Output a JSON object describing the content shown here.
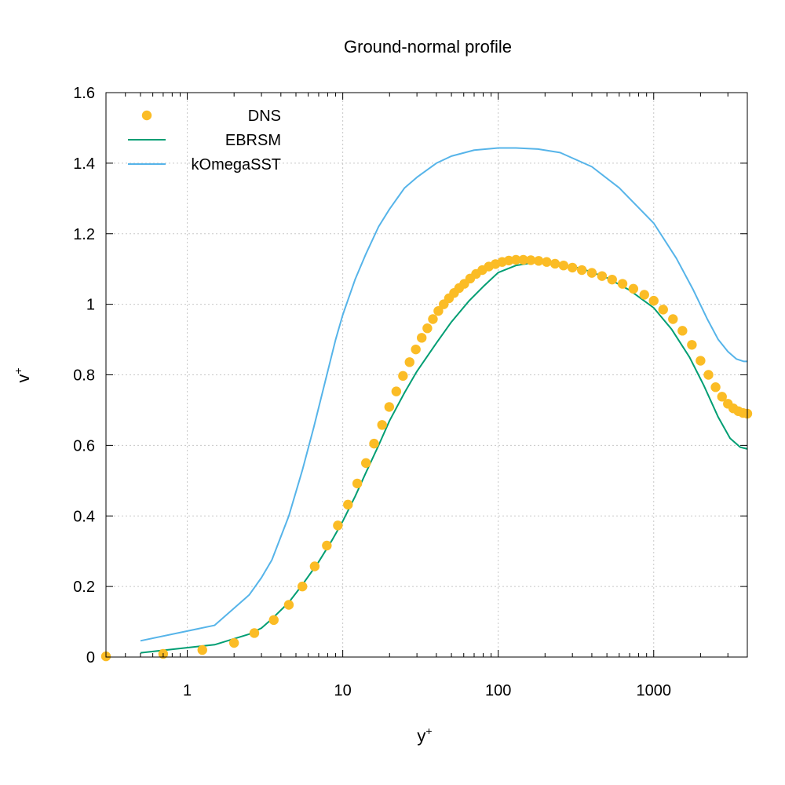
{
  "chart_data": {
    "type": "scatter",
    "title": "Ground-normal profile",
    "xlabel": "y",
    "xlabel_sup": "+",
    "ylabel": "v",
    "ylabel_sup": "+",
    "xscale": "log",
    "xlim": [
      0.3,
      4000
    ],
    "ylim": [
      0,
      1.6
    ],
    "xticks": [
      1,
      10,
      100,
      1000
    ],
    "xtick_labels": [
      "1",
      "10",
      "100",
      "1000"
    ],
    "yticks": [
      0,
      0.2,
      0.4,
      0.6,
      0.8,
      1,
      1.2,
      1.4,
      1.6
    ],
    "ytick_labels": [
      "0",
      "0.2",
      "0.4",
      "0.6",
      "0.8",
      "1",
      "1.2",
      "1.4",
      "1.6"
    ],
    "grid": true,
    "legend_position": "top-left",
    "series": [
      {
        "name": "DNS",
        "style": "points",
        "color": "#fbbc25",
        "x": [
          0.3,
          0.7,
          1.25,
          2.0,
          2.7,
          3.6,
          4.5,
          5.5,
          6.6,
          7.9,
          9.3,
          10.8,
          12.4,
          14.1,
          15.9,
          17.9,
          19.9,
          22.1,
          24.4,
          26.9,
          29.5,
          32.2,
          35.0,
          38.0,
          41.2,
          44.6,
          48.2,
          52.0,
          56.0,
          60.5,
          66,
          72,
          79,
          87,
          96,
          106,
          117,
          130,
          145,
          162,
          182,
          205,
          232,
          263,
          300,
          345,
          400,
          465,
          540,
          630,
          740,
          870,
          1000,
          1150,
          1330,
          1530,
          1760,
          2000,
          2250,
          2500,
          2750,
          3000,
          3250,
          3500,
          3750,
          4000
        ],
        "y": [
          0.002,
          0.009,
          0.02,
          0.04,
          0.068,
          0.105,
          0.148,
          0.2,
          0.257,
          0.316,
          0.373,
          0.432,
          0.492,
          0.55,
          0.605,
          0.658,
          0.709,
          0.753,
          0.797,
          0.836,
          0.872,
          0.905,
          0.932,
          0.958,
          0.981,
          1.0,
          1.017,
          1.032,
          1.046,
          1.058,
          1.073,
          1.086,
          1.097,
          1.107,
          1.114,
          1.12,
          1.124,
          1.126,
          1.126,
          1.125,
          1.123,
          1.12,
          1.115,
          1.11,
          1.104,
          1.097,
          1.089,
          1.08,
          1.07,
          1.058,
          1.044,
          1.027,
          1.01,
          0.985,
          0.958,
          0.925,
          0.885,
          0.84,
          0.8,
          0.765,
          0.738,
          0.718,
          0.705,
          0.697,
          0.692,
          0.69
        ]
      },
      {
        "name": "EBRSM",
        "style": "line",
        "color": "#009e73",
        "x": [
          0.5,
          1.5,
          2.5,
          3.0,
          3.5,
          4.5,
          5.5,
          7,
          8.5,
          10,
          12,
          14,
          17,
          20,
          25,
          30,
          40,
          50,
          65,
          80,
          100,
          130,
          180,
          250,
          350,
          500,
          700,
          1000,
          1300,
          1700,
          2100,
          2600,
          3100,
          3600,
          4000
        ],
        "y": [
          0.012,
          0.035,
          0.065,
          0.082,
          0.108,
          0.155,
          0.205,
          0.27,
          0.33,
          0.385,
          0.455,
          0.52,
          0.6,
          0.67,
          0.75,
          0.81,
          0.89,
          0.95,
          1.01,
          1.05,
          1.09,
          1.11,
          1.12,
          1.115,
          1.1,
          1.075,
          1.04,
          0.99,
          0.93,
          0.85,
          0.77,
          0.68,
          0.62,
          0.595,
          0.59
        ]
      },
      {
        "name": "kOmegaSST",
        "style": "line",
        "color": "#56b4e9",
        "x": [
          0.5,
          1.5,
          2.5,
          3.0,
          3.5,
          4.5,
          5.5,
          6.5,
          7.5,
          9,
          10,
          12,
          14,
          17,
          20,
          25,
          30,
          40,
          50,
          70,
          100,
          130,
          180,
          250,
          400,
          600,
          1000,
          1400,
          1800,
          2200,
          2600,
          3000,
          3400,
          3800,
          4000
        ],
        "y": [
          0.046,
          0.09,
          0.176,
          0.225,
          0.275,
          0.4,
          0.53,
          0.65,
          0.76,
          0.9,
          0.97,
          1.07,
          1.14,
          1.22,
          1.27,
          1.33,
          1.36,
          1.4,
          1.42,
          1.437,
          1.443,
          1.443,
          1.44,
          1.43,
          1.39,
          1.33,
          1.23,
          1.13,
          1.04,
          0.96,
          0.9,
          0.866,
          0.845,
          0.838,
          0.838
        ]
      }
    ]
  }
}
